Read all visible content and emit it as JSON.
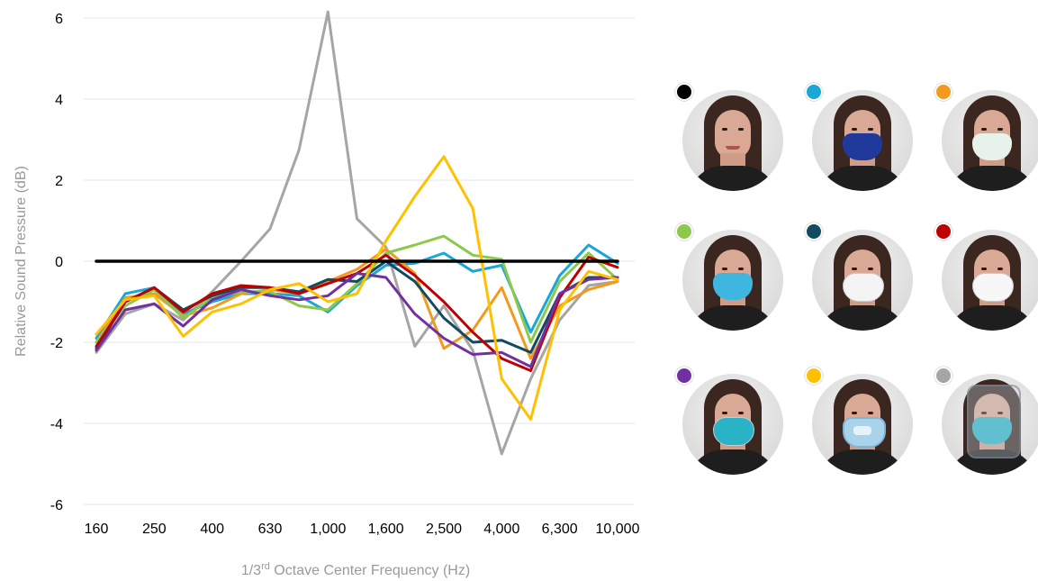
{
  "chart_data": {
    "type": "line",
    "ylabel": "Relative Sound Pressure (dB)",
    "xlabel_prefix": "1/3",
    "xlabel_sup": "rd",
    "xlabel_suffix": " Octave Center Frequency (Hz)",
    "ylim": [
      -6,
      6
    ],
    "yticks": [
      "6",
      "4",
      "2",
      "0",
      "-2",
      "-4",
      "-6"
    ],
    "ytick_values": [
      6,
      4,
      2,
      0,
      -2,
      -4,
      -6
    ],
    "x": [
      160,
      200,
      250,
      315,
      400,
      500,
      630,
      800,
      1000,
      1250,
      1600,
      2000,
      2500,
      3150,
      4000,
      5000,
      6300,
      8000,
      10000
    ],
    "xtick_labels": [
      "160",
      "250",
      "400",
      "630",
      "1,000",
      "1,600",
      "2,500",
      "4,000",
      "6,300",
      "10,000"
    ],
    "xtick_values": [
      160,
      250,
      400,
      630,
      1000,
      1600,
      2500,
      4000,
      6300,
      10000
    ],
    "grid": "horizontal",
    "legend": "right (photo grid)",
    "series": [
      {
        "color": "#000000",
        "values": [
          0,
          0,
          0,
          0,
          0,
          0,
          0,
          0,
          0,
          0,
          0,
          0,
          0,
          0,
          0,
          0,
          0,
          0,
          0
        ]
      },
      {
        "color": "#19a7d9",
        "values": [
          -1.9,
          -0.8,
          -0.65,
          -1.3,
          -1.0,
          -0.8,
          -0.8,
          -0.85,
          -1.25,
          -0.6,
          -0.1,
          -0.05,
          0.2,
          -0.25,
          -0.1,
          -1.75,
          -0.35,
          0.4,
          -0.05
        ]
      },
      {
        "color": "#f39a1e",
        "values": [
          -2.0,
          -0.9,
          -0.8,
          -1.35,
          -1.15,
          -0.8,
          -0.7,
          -0.8,
          -0.5,
          -0.2,
          0.3,
          -0.3,
          -2.15,
          -1.7,
          -0.65,
          -2.4,
          -1.1,
          -0.7,
          -0.5
        ]
      },
      {
        "color": "#8cc84b",
        "values": [
          -2.0,
          -1.1,
          -0.7,
          -1.4,
          -0.9,
          -0.75,
          -0.75,
          -1.1,
          -1.2,
          -0.55,
          0.2,
          0.4,
          0.62,
          0.15,
          0.05,
          -2.0,
          -0.5,
          0.2,
          -0.45
        ]
      },
      {
        "color": "#124a60",
        "values": [
          -2.15,
          -1.0,
          -0.65,
          -1.2,
          -0.85,
          -0.65,
          -0.65,
          -0.75,
          -0.45,
          -0.5,
          0.0,
          -0.5,
          -1.4,
          -2.0,
          -1.95,
          -2.25,
          -0.8,
          -0.4,
          -0.4
        ]
      },
      {
        "color": "#c00000",
        "values": [
          -2.1,
          -1.0,
          -0.65,
          -1.25,
          -0.8,
          -0.6,
          -0.65,
          -0.8,
          -0.55,
          -0.3,
          0.15,
          -0.35,
          -1.0,
          -1.75,
          -2.4,
          -2.7,
          -0.9,
          0.1,
          -0.15
        ]
      },
      {
        "color": "#7030a0",
        "values": [
          -2.2,
          -1.2,
          -1.05,
          -1.6,
          -0.95,
          -0.7,
          -0.85,
          -0.95,
          -0.85,
          -0.3,
          -0.4,
          -1.3,
          -1.9,
          -2.3,
          -2.25,
          -2.6,
          -0.8,
          -0.45,
          -0.4
        ]
      },
      {
        "color": "#ffc000",
        "values": [
          -1.8,
          -0.95,
          -0.85,
          -1.85,
          -1.25,
          -1.05,
          -0.7,
          -0.55,
          -1.0,
          -0.8,
          0.5,
          1.6,
          2.58,
          1.3,
          -2.9,
          -3.9,
          -1.2,
          -0.25,
          -0.45
        ]
      },
      {
        "color": "#a5a5a5",
        "values": [
          -2.25,
          -1.3,
          -1.05,
          -1.45,
          -0.75,
          0.0,
          0.8,
          2.75,
          6.15,
          1.05,
          0.35,
          -2.1,
          -1.1,
          -2.2,
          -4.75,
          -2.9,
          -1.45,
          -0.6,
          -0.5
        ]
      }
    ]
  },
  "legend_photos": [
    {
      "color": "#000000",
      "icon": "face-no-mask-icon",
      "mask": "none",
      "mask_color": ""
    },
    {
      "color": "#19a7d9",
      "icon": "face-cloth-mask-icon",
      "mask": "cloth",
      "mask_color": "#1f3a9a"
    },
    {
      "color": "#f39a1e",
      "icon": "face-patterned-mask-icon",
      "mask": "cloth",
      "mask_color": "#e6f2ea"
    },
    {
      "color": "#8cc84b",
      "icon": "face-leopard-mask-icon",
      "mask": "cloth",
      "mask_color": "#3fb6e0"
    },
    {
      "color": "#124a60",
      "icon": "face-n95-respirator-icon",
      "mask": "respirator",
      "mask_color": "#f4f4f4"
    },
    {
      "color": "#c00000",
      "icon": "face-n95-valve-respirator-icon",
      "mask": "respirator",
      "mask_color": "#f7f7f7"
    },
    {
      "color": "#7030a0",
      "icon": "face-surgical-n95-icon",
      "mask": "respirator",
      "mask_color": "#2ab3c6"
    },
    {
      "color": "#ffc000",
      "icon": "face-clear-window-mask-icon",
      "mask": "window",
      "mask_color": "#a9d3ea"
    },
    {
      "color": "#a5a5a5",
      "icon": "face-shield-n95-icon",
      "mask": "shield",
      "mask_color": "#2ab3c6"
    }
  ]
}
